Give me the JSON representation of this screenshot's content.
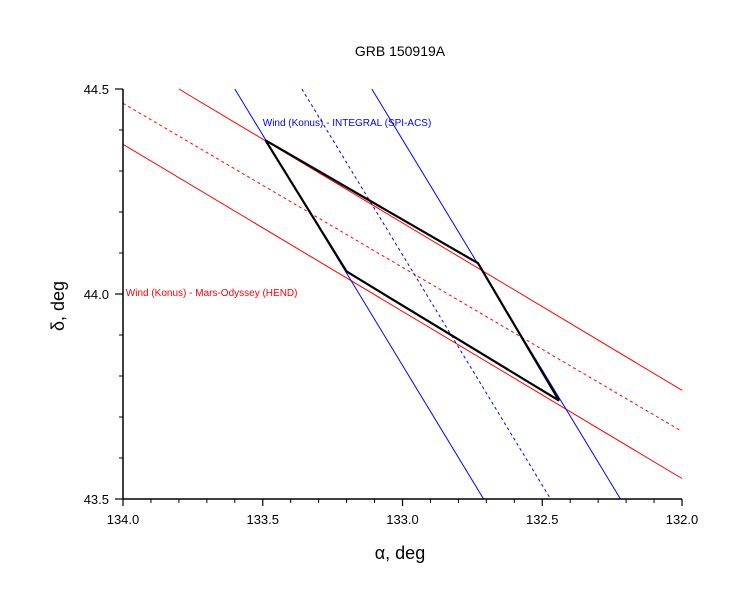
{
  "chart_data": {
    "type": "line",
    "title": "GRB 150919A",
    "xlabel": "α, deg",
    "ylabel": "δ, deg",
    "xlim": [
      134.0,
      132.0
    ],
    "ylim": [
      43.5,
      44.5
    ],
    "x_reversed": true,
    "x_ticks": [
      134.0,
      133.5,
      133.0,
      132.5,
      132.0
    ],
    "x_tick_labels": [
      "134.0",
      "133.5",
      "133.0",
      "132.5",
      "132.0"
    ],
    "y_ticks": [
      43.5,
      44.0,
      44.5
    ],
    "y_tick_labels": [
      "43.5",
      "44.0",
      "44.5"
    ],
    "grid": false,
    "colors": {
      "red": "#ff0000",
      "blue": "#0000ff",
      "black": "#000000"
    },
    "annotations": [
      {
        "text": "Wind (Konus) - INTEGRAL (SPI-ACS)",
        "x": 133.5,
        "y": 44.41,
        "color": "#0000ff"
      },
      {
        "text": "Wind (Konus) - Mars-Odyssey (HEND)",
        "x": 133.99,
        "y": 43.995,
        "color": "#ff0000"
      }
    ],
    "series": [
      {
        "color": "#ff0000",
        "style": "solid",
        "points": [
          [
            133.8,
            44.5
          ],
          [
            132.0,
            43.765
          ]
        ]
      },
      {
        "color": "#ff0000",
        "style": "dashed",
        "points": [
          [
            134.0,
            44.465
          ],
          [
            132.0,
            43.665
          ]
        ]
      },
      {
        "color": "#ff0000",
        "style": "solid",
        "points": [
          [
            134.0,
            44.365
          ],
          [
            132.0,
            43.55
          ]
        ]
      },
      {
        "color": "#0000ff",
        "style": "solid",
        "points": [
          [
            133.6,
            44.5
          ],
          [
            132.71,
            43.5
          ]
        ]
      },
      {
        "color": "#0000ff",
        "style": "dashed",
        "points": [
          [
            133.36,
            44.5
          ],
          [
            132.47,
            43.5
          ]
        ]
      },
      {
        "color": "#0000ff",
        "style": "solid",
        "points": [
          [
            133.11,
            44.5
          ],
          [
            132.22,
            43.5
          ]
        ]
      },
      {
        "color": "#000000",
        "style": "thick",
        "closed": true,
        "points": [
          [
            133.49,
            44.375
          ],
          [
            132.73,
            44.075
          ],
          [
            132.44,
            43.74
          ],
          [
            133.2,
            44.055
          ]
        ]
      }
    ]
  }
}
